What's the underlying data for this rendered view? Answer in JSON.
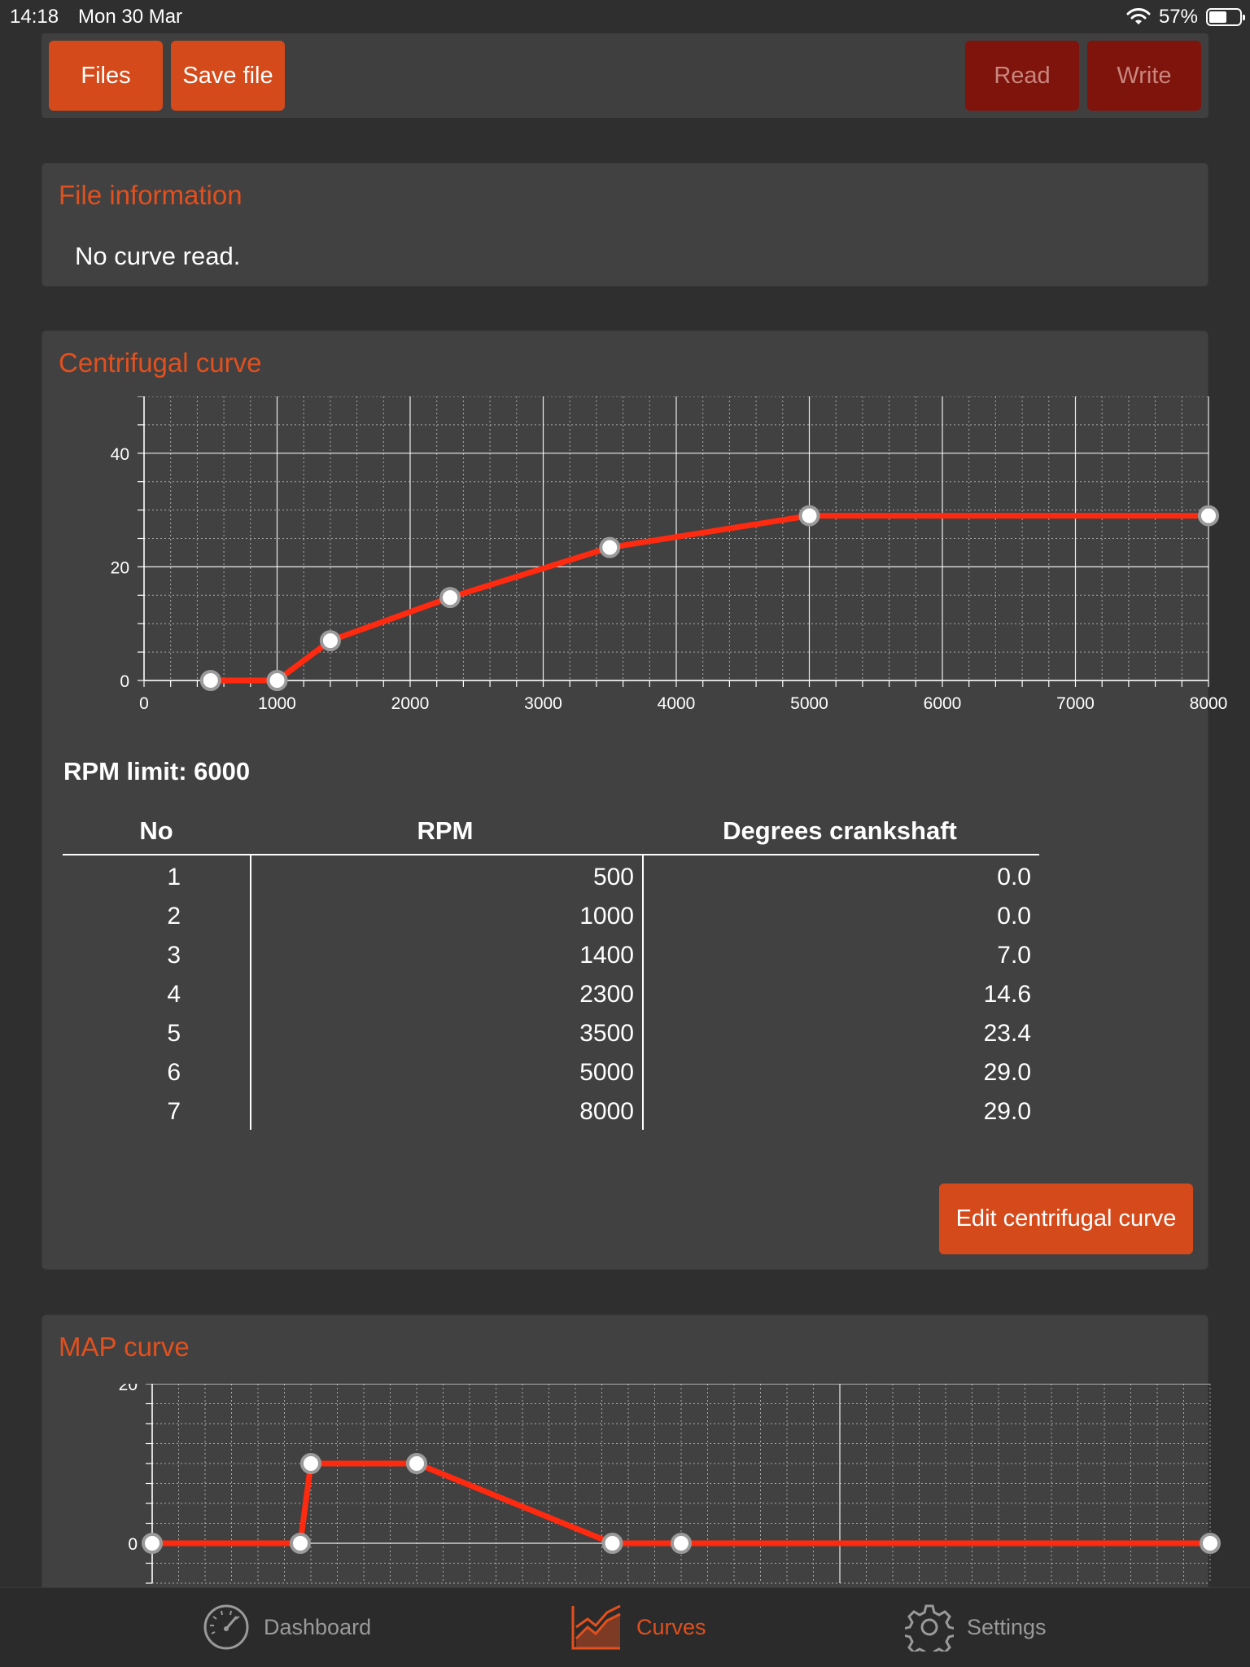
{
  "status_bar": {
    "time": "14:18",
    "date": "Mon 30 Mar",
    "battery": "57%",
    "battery_level": 0.57
  },
  "toolbar": {
    "files_label": "Files",
    "save_label": "Save file",
    "read_label": "Read",
    "write_label": "Write"
  },
  "file_info": {
    "title": "File information",
    "text": "No curve read."
  },
  "centrifugal": {
    "title": "Centrifugal curve",
    "rpm_limit": "RPM limit: 6000",
    "table": {
      "headers": [
        "No",
        "RPM",
        "Degrees crankshaft"
      ],
      "rows": [
        [
          "1",
          "500",
          "0.0"
        ],
        [
          "2",
          "1000",
          "0.0"
        ],
        [
          "3",
          "1400",
          "7.0"
        ],
        [
          "4",
          "2300",
          "14.6"
        ],
        [
          "5",
          "3500",
          "23.4"
        ],
        [
          "6",
          "5000",
          "29.0"
        ],
        [
          "7",
          "8000",
          "29.0"
        ]
      ]
    },
    "edit_label": "Edit centrifugal curve"
  },
  "map": {
    "title": "MAP curve"
  },
  "chart_data": [
    {
      "type": "line",
      "title": "",
      "x": [
        500,
        1000,
        1400,
        2300,
        3500,
        5000,
        8000
      ],
      "series": [
        {
          "values": [
            0.0,
            0.0,
            7.0,
            14.6,
            23.4,
            29.0,
            29.0
          ]
        }
      ],
      "xlim": [
        0,
        8000
      ],
      "ylim": [
        0,
        50
      ],
      "xticks": [
        0,
        1000,
        2000,
        3000,
        4000,
        5000,
        6000,
        7000,
        8000
      ],
      "yticks": [
        0,
        20,
        40
      ],
      "grid": true,
      "line_color": "#ff2a0f"
    },
    {
      "type": "line",
      "title": "",
      "x": [
        0,
        1400,
        1500,
        2500,
        4350,
        5000,
        10000
      ],
      "series": [
        {
          "values": [
            0,
            0,
            10,
            10,
            0,
            0,
            0
          ]
        }
      ],
      "xlim": [
        0,
        10000
      ],
      "ylim": [
        -5,
        20
      ],
      "yticks": [
        0,
        20
      ],
      "grid": true,
      "line_color": "#ff2a0f"
    }
  ],
  "tabbar": {
    "items": [
      {
        "label": "Dashboard",
        "icon": "speedometer-icon",
        "active": false
      },
      {
        "label": "Curves",
        "icon": "curves-chart-icon",
        "active": true
      },
      {
        "label": "Settings",
        "icon": "gear-icon",
        "active": false
      }
    ],
    "active_color": "#e2501e",
    "inactive_color": "#9a9a9a"
  }
}
